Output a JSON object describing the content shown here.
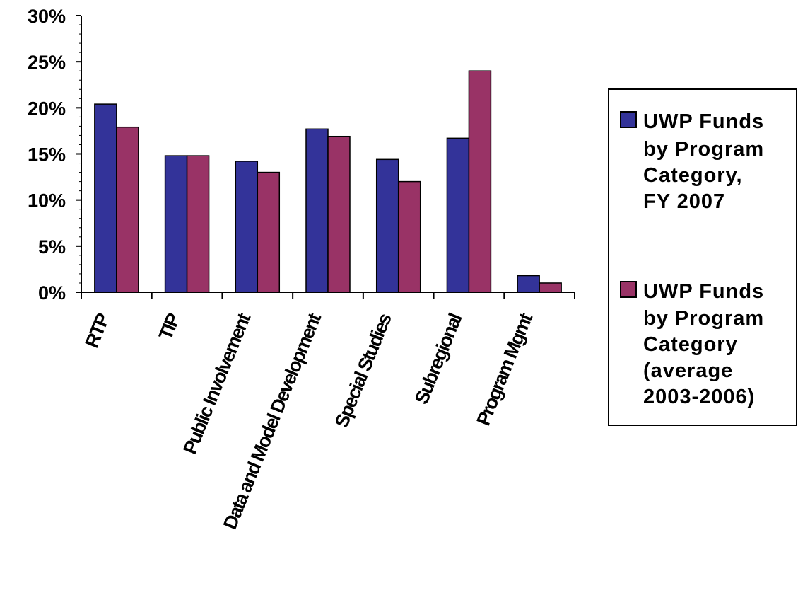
{
  "chart_data": {
    "type": "bar",
    "categories": [
      "RTP",
      "TIP",
      "Public Involvement",
      "Data and Model Development",
      "Special Studies",
      "Subregional",
      "Program Mgmt"
    ],
    "series": [
      {
        "name": "UWP Funds by Program Category, FY 2007",
        "values": [
          20.4,
          14.8,
          14.2,
          17.7,
          14.4,
          16.7,
          1.8
        ],
        "color": "#333399"
      },
      {
        "name": "UWP Funds by Program Category (average 2003-2006)",
        "values": [
          17.9,
          14.8,
          13.0,
          16.9,
          12.0,
          24.0,
          1.0
        ],
        "color": "#993366"
      }
    ],
    "yticks": [
      "0%",
      "5%",
      "10%",
      "15%",
      "20%",
      "25%",
      "30%"
    ],
    "ylim": [
      0,
      30
    ],
    "title": "",
    "xlabel": "",
    "ylabel": "",
    "grid": false,
    "legend_position": "right"
  },
  "legend": {
    "series1_lines": [
      "UWP Funds",
      "by Program",
      "Category,",
      "FY 2007"
    ],
    "series2_lines": [
      "UWP Funds",
      "by Program",
      "Category",
      "(average",
      "2003-2006)"
    ]
  }
}
